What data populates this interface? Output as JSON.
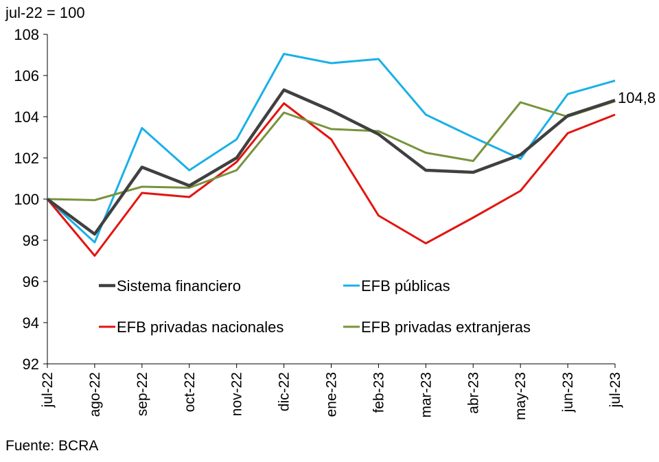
{
  "unit_label": "jul-22 = 100",
  "source": "Fuente: BCRA",
  "chart_data": {
    "type": "line",
    "categories": [
      "jul-22",
      "ago-22",
      "sep-22",
      "oct-22",
      "nov-22",
      "dic-22",
      "ene-23",
      "feb-23",
      "mar-23",
      "abr-23",
      "may-23",
      "jun-23",
      "jul-23"
    ],
    "ylim": [
      92,
      108
    ],
    "yticks": [
      92,
      94,
      96,
      98,
      100,
      102,
      104,
      106,
      108
    ],
    "ylabel": "jul-22 = 100",
    "xlabel": "",
    "grid": false,
    "legend_placement": "bottom-inside",
    "series": [
      {
        "name": "Sistema financiero",
        "color": "#404040",
        "values": [
          100,
          98.3,
          101.55,
          100.65,
          102.0,
          105.3,
          104.3,
          103.15,
          101.4,
          101.3,
          102.15,
          104.05,
          104.8
        ]
      },
      {
        "name": "EFB públicas",
        "color": "#1AB0E8",
        "values": [
          100,
          97.9,
          103.45,
          101.4,
          102.9,
          107.05,
          106.6,
          106.8,
          104.1,
          103.0,
          101.95,
          105.1,
          105.75
        ]
      },
      {
        "name": "EFB privadas nacionales",
        "color": "#E3140F",
        "values": [
          100,
          97.25,
          100.3,
          100.1,
          101.8,
          104.65,
          102.9,
          99.2,
          97.85,
          99.1,
          100.4,
          103.2,
          104.1
        ]
      },
      {
        "name": "EFB privadas extranjeras",
        "color": "#77933C",
        "values": [
          100,
          99.95,
          100.6,
          100.55,
          101.4,
          104.2,
          103.4,
          103.3,
          102.25,
          101.85,
          104.7,
          104.0,
          104.75
        ]
      }
    ],
    "annotations": [
      {
        "text": "104,8",
        "series": "Sistema financiero",
        "category": "jul-23"
      }
    ]
  }
}
